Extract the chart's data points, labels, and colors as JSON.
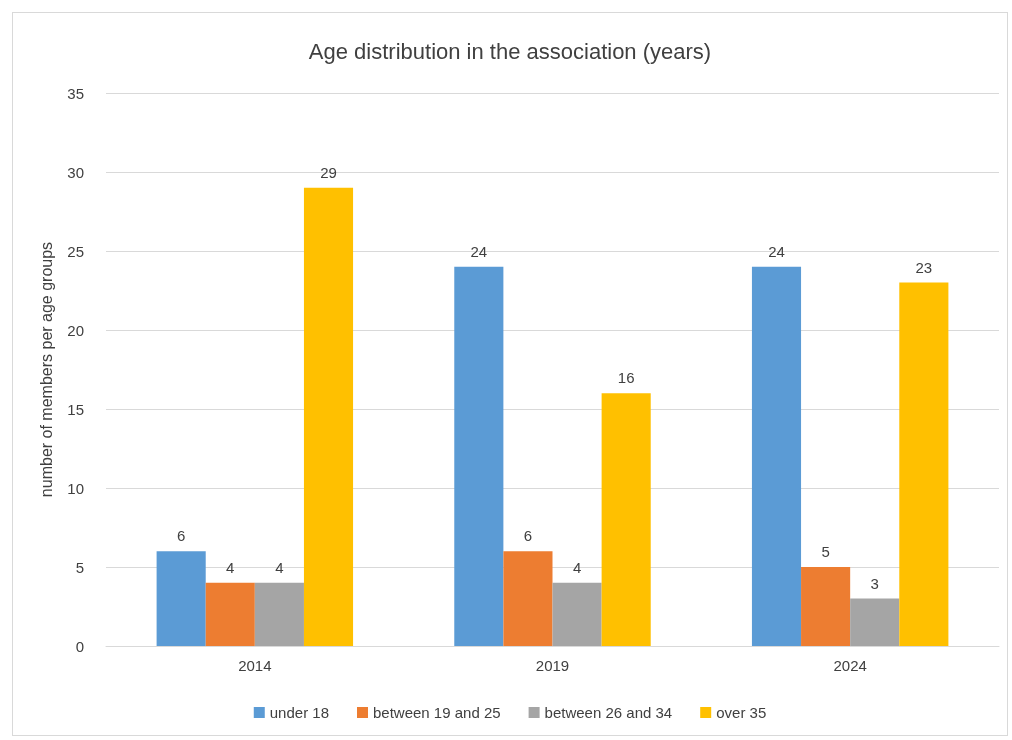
{
  "chart_data": {
    "type": "bar",
    "title": "Age distribution in the association (years)",
    "ylabel": "number of members per age groups",
    "categories": [
      "2014",
      "2019",
      "2024"
    ],
    "series": [
      {
        "name": "under 18",
        "color": "#5b9bd5",
        "values": [
          6,
          24,
          24
        ]
      },
      {
        "name": "between 19 and 25",
        "color": "#ed7d31",
        "values": [
          4,
          6,
          5
        ]
      },
      {
        "name": "between 26 and 34",
        "color": "#a5a5a5",
        "values": [
          4,
          4,
          3
        ]
      },
      {
        "name": "over 35",
        "color": "#ffc000",
        "values": [
          29,
          16,
          23
        ]
      }
    ],
    "ylim": [
      0,
      35
    ],
    "yticks": [
      0,
      5,
      10,
      15,
      20,
      25,
      30,
      35
    ],
    "grid": "y",
    "legend": "bottom",
    "data_labels": true
  }
}
